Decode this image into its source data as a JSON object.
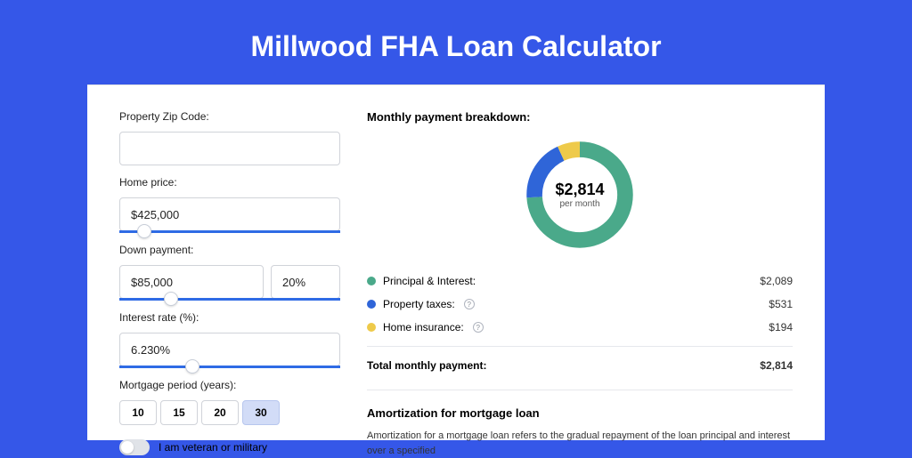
{
  "title": "Millwood FHA Loan Calculator",
  "form": {
    "zip_label": "Property Zip Code:",
    "zip_value": "",
    "home_price_label": "Home price:",
    "home_price_value": "$425,000",
    "home_price_slider_pct": 8,
    "down_payment_label": "Down payment:",
    "down_payment_value": "$85,000",
    "down_payment_pct_value": "20%",
    "down_payment_slider_pct": 20,
    "interest_label": "Interest rate (%):",
    "interest_value": "6.230%",
    "interest_slider_pct": 30,
    "period_label": "Mortgage period (years):",
    "periods": [
      "10",
      "15",
      "20",
      "30"
    ],
    "period_active": "30",
    "veteran_label": "I am veteran or military",
    "veteran_on": false
  },
  "breakdown": {
    "title": "Monthly payment breakdown:",
    "amount": "$2,814",
    "sub": "per month",
    "items": [
      {
        "label": "Principal & Interest:",
        "value": "$2,089",
        "color": "#4aa98a",
        "pct": 74,
        "info": false
      },
      {
        "label": "Property taxes:",
        "value": "$531",
        "color": "#2f65d8",
        "pct": 19,
        "info": true
      },
      {
        "label": "Home insurance:",
        "value": "$194",
        "color": "#eeca4a",
        "pct": 7,
        "info": true
      }
    ],
    "total_label": "Total monthly payment:",
    "total_value": "$2,814"
  },
  "amortization": {
    "title": "Amortization for mortgage loan",
    "text": "Amortization for a mortgage loan refers to the gradual repayment of the loan principal and interest over a specified"
  },
  "style": {
    "background": "#3557e8",
    "card_bg": "#ffffff",
    "input_border": "#d0d3d9",
    "slider_color": "#2f6be5",
    "period_active_bg": "#d2dcf7"
  }
}
